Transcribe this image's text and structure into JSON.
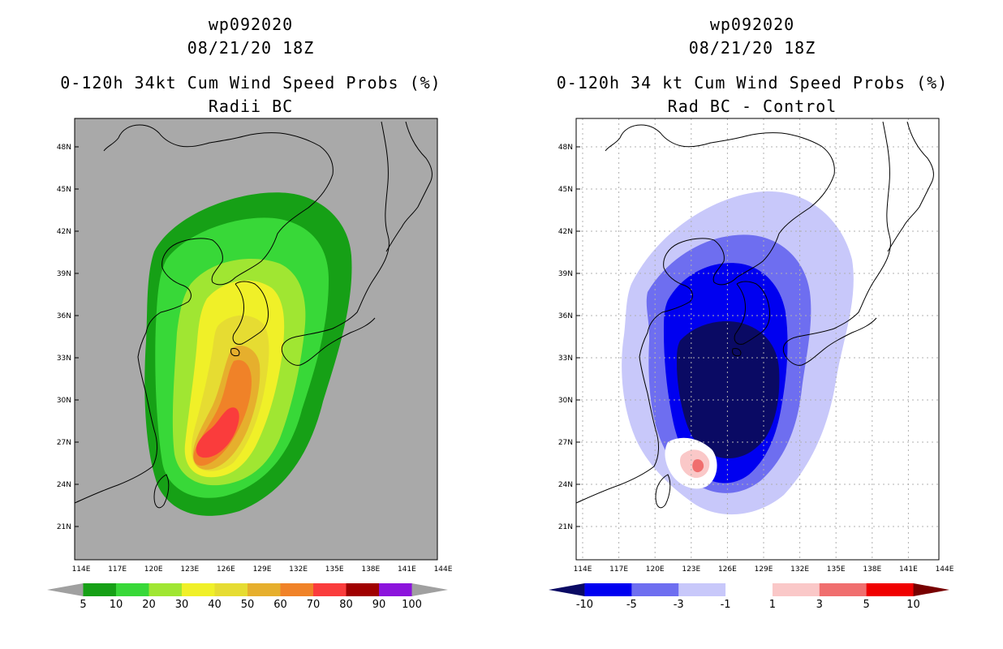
{
  "left": {
    "storm_id": "wp092020",
    "datetime": "08/21/20 18Z",
    "title": "0-120h 34kt Cum Wind Speed Probs (%)",
    "subtitle": "Radii BC",
    "lon_ticks": [
      "114E",
      "117E",
      "120E",
      "123E",
      "126E",
      "129E",
      "132E",
      "135E",
      "138E",
      "141E",
      "144E"
    ],
    "lat_ticks": [
      "48N",
      "45N",
      "42N",
      "39N",
      "36N",
      "33N",
      "30N",
      "27N",
      "24N",
      "21N"
    ],
    "colorbar": {
      "labels": [
        "5",
        "10",
        "20",
        "30",
        "40",
        "50",
        "60",
        "70",
        "80",
        "90",
        "100"
      ],
      "colors": [
        "#a0a0a0",
        "#16a016",
        "#38d838",
        "#a0e632",
        "#f0f028",
        "#e6dc32",
        "#e6af2d",
        "#f08228",
        "#fa3c3c",
        "#a00000",
        "#8c14dc",
        "#a0a0a0"
      ]
    }
  },
  "right": {
    "storm_id": "wp092020",
    "datetime": "08/21/20 18Z",
    "title": "0-120h 34 kt Cum Wind Speed Probs (%)",
    "subtitle": "Rad BC - Control",
    "lon_ticks": [
      "114E",
      "117E",
      "120E",
      "123E",
      "126E",
      "129E",
      "132E",
      "135E",
      "138E",
      "141E",
      "144E"
    ],
    "lat_ticks": [
      "48N",
      "45N",
      "42N",
      "39N",
      "36N",
      "33N",
      "30N",
      "27N",
      "24N",
      "21N"
    ],
    "colorbar": {
      "labels": [
        "-10",
        "-5",
        "-3",
        "-1",
        "1",
        "3",
        "5",
        "10"
      ],
      "colors": [
        "#0a0a64",
        "#0000f0",
        "#6e6ef0",
        "#c8c8fa",
        "#ffffff",
        "#fac8c8",
        "#f06e6e",
        "#f00000",
        "#780000"
      ]
    }
  }
}
